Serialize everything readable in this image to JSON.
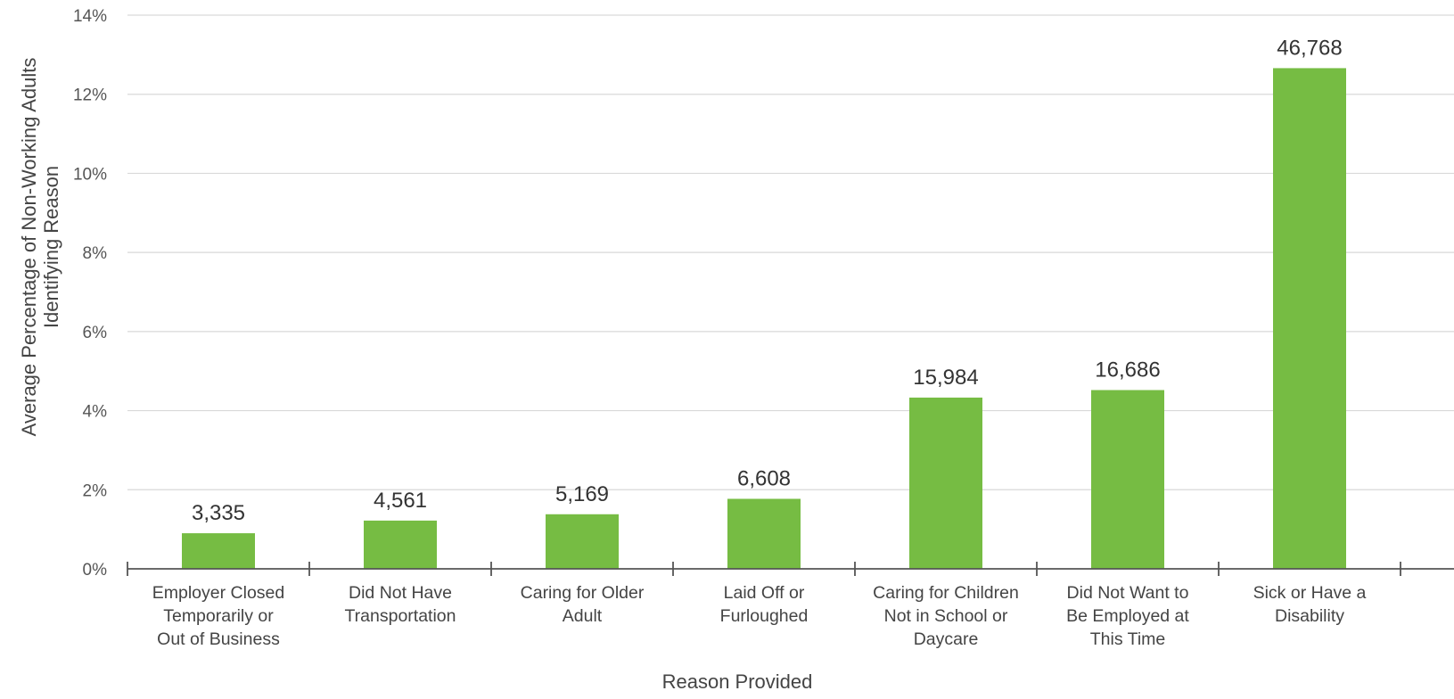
{
  "chart_data": {
    "type": "bar",
    "title": "",
    "xlabel": "Reason Provided",
    "ylabel_lines": [
      "Average Percentage of Non-Working Adults",
      "Identifying Reason"
    ],
    "ylim": [
      0,
      14
    ],
    "yticks": [
      0,
      2,
      4,
      6,
      8,
      10,
      12,
      14
    ],
    "ytick_labels": [
      "0%",
      "2%",
      "4%",
      "6%",
      "8%",
      "10%",
      "12%",
      "14%"
    ],
    "grid": true,
    "legend": "none",
    "bar_color": "#76bc43",
    "categories": [
      [
        "Employer Closed",
        "Temporarily or",
        "Out of Business"
      ],
      [
        "Did Not Have",
        "Transportation"
      ],
      [
        "Caring for Older",
        "Adult"
      ],
      [
        "Laid Off or",
        "Furloughed"
      ],
      [
        "Caring for Children",
        "Not in School or",
        "Daycare"
      ],
      [
        "Did Not Want to",
        "Be Employed at",
        "This Time"
      ],
      [
        "Sick or Have a",
        "Disability"
      ]
    ],
    "values": [
      0.9,
      1.22,
      1.38,
      1.77,
      4.33,
      4.52,
      12.66
    ],
    "data_labels": [
      "3,335",
      "4,561",
      "5,169",
      "6,608",
      "15,984",
      "16,686",
      "46,768"
    ]
  }
}
